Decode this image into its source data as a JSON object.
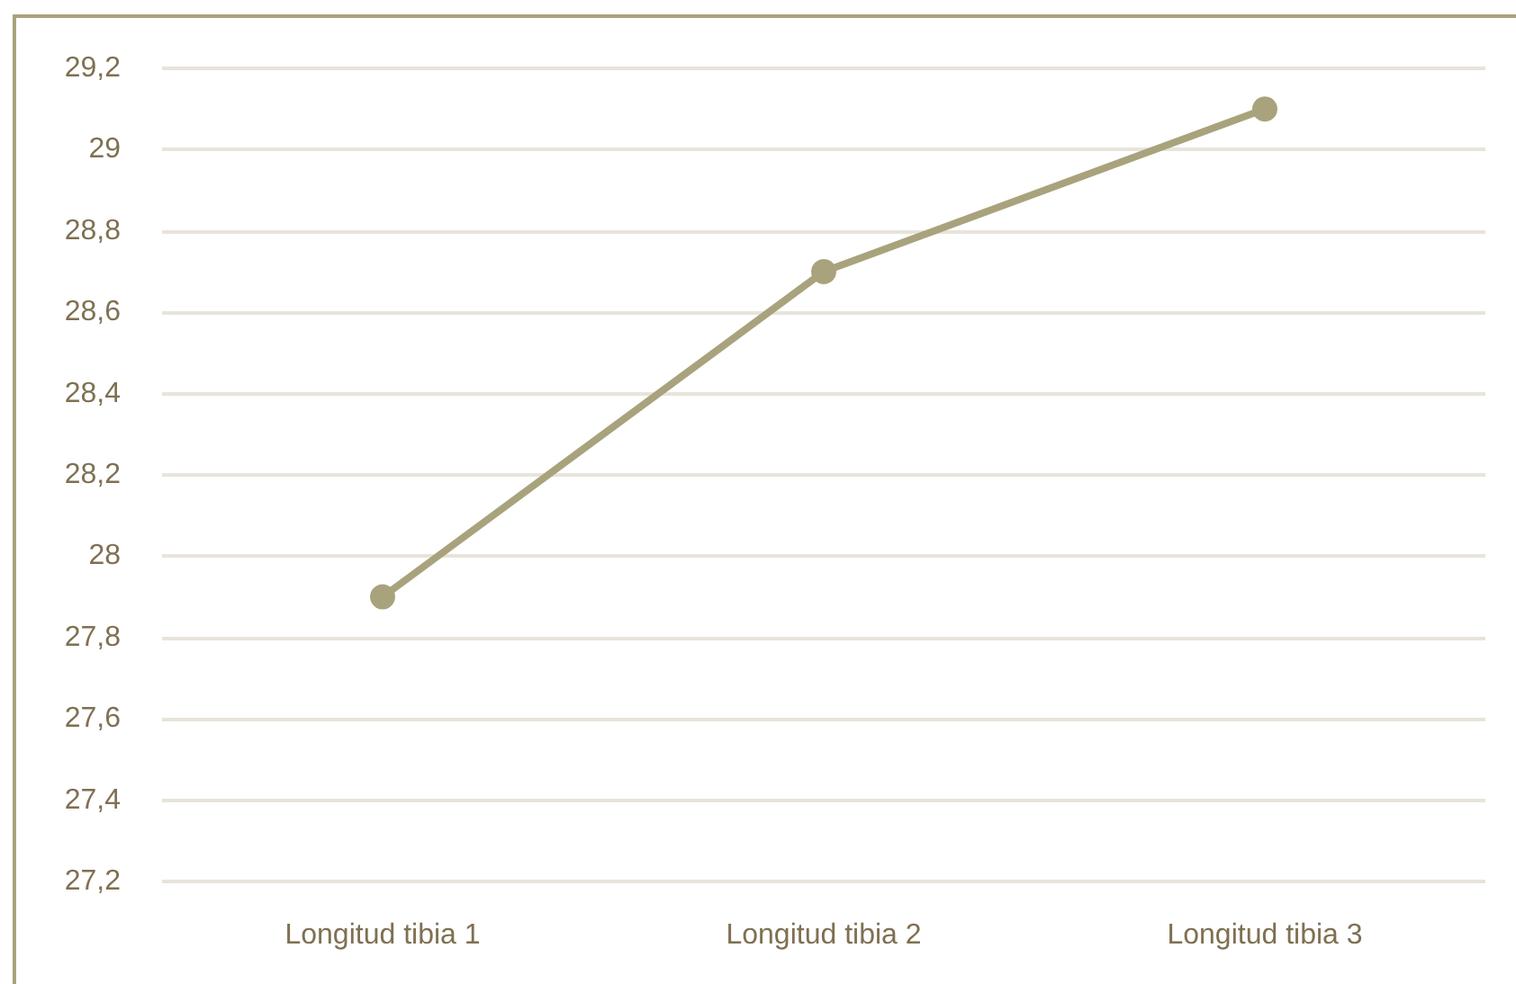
{
  "chart_data": {
    "type": "line",
    "categories": [
      "Longitud tibia 1",
      "Longitud tibia 2",
      "Longitud tibia 3"
    ],
    "series": [
      {
        "color": "#a8a37d",
        "values": [
          27.9,
          28.7,
          29.1
        ]
      }
    ],
    "ylim": [
      27.2,
      29.2
    ],
    "yticks": [
      {
        "value": 27.2,
        "label": "27,2"
      },
      {
        "value": 27.4,
        "label": "27,4"
      },
      {
        "value": 27.6,
        "label": "27,6"
      },
      {
        "value": 27.8,
        "label": "27,8"
      },
      28,
      {
        "value": 28.2,
        "label": "28,2"
      },
      {
        "value": 28.4,
        "label": "28,4"
      },
      {
        "value": 28.6,
        "label": "28,6"
      },
      {
        "value": 28.8,
        "label": "28,8"
      },
      29,
      {
        "value": 29.2,
        "label": "29,2"
      }
    ],
    "grid": "y",
    "marker": "circle",
    "line_style": "solid"
  }
}
